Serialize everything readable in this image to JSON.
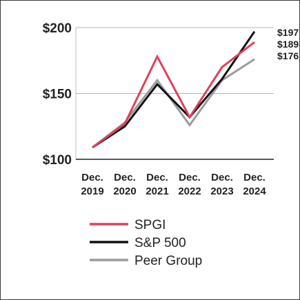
{
  "chart_data": {
    "type": "line",
    "title": "",
    "xlabel": "",
    "ylabel": "",
    "x": [
      "Dec. 2019",
      "Dec. 2020",
      "Dec. 2021",
      "Dec. 2022",
      "Dec. 2023",
      "Dec. 2024"
    ],
    "x_lines": [
      [
        "Dec.",
        "2019"
      ],
      [
        "Dec.",
        "2020"
      ],
      [
        "Dec.",
        "2021"
      ],
      [
        "Dec.",
        "2022"
      ],
      [
        "Dec.",
        "2023"
      ],
      [
        "Dec.",
        "2024"
      ]
    ],
    "ylim": [
      100,
      200
    ],
    "yticks": [
      100,
      150,
      200
    ],
    "ytick_labels": [
      "$100",
      "$150",
      "$200"
    ],
    "grid": "horizontal",
    "legend_position": "bottom",
    "series": [
      {
        "name": "SPGI",
        "color": "#e0405a",
        "values": [
          109,
          127,
          178,
          132,
          170,
          189
        ],
        "end_label": "$189"
      },
      {
        "name": "S&P 500",
        "color": "#111111",
        "values": [
          109,
          125,
          157,
          132,
          161,
          197
        ],
        "end_label": "$197"
      },
      {
        "name": "Peer Group",
        "color": "#9a9a9a",
        "values": [
          109,
          128,
          160,
          126,
          160,
          176
        ],
        "end_label": "$176"
      }
    ]
  }
}
